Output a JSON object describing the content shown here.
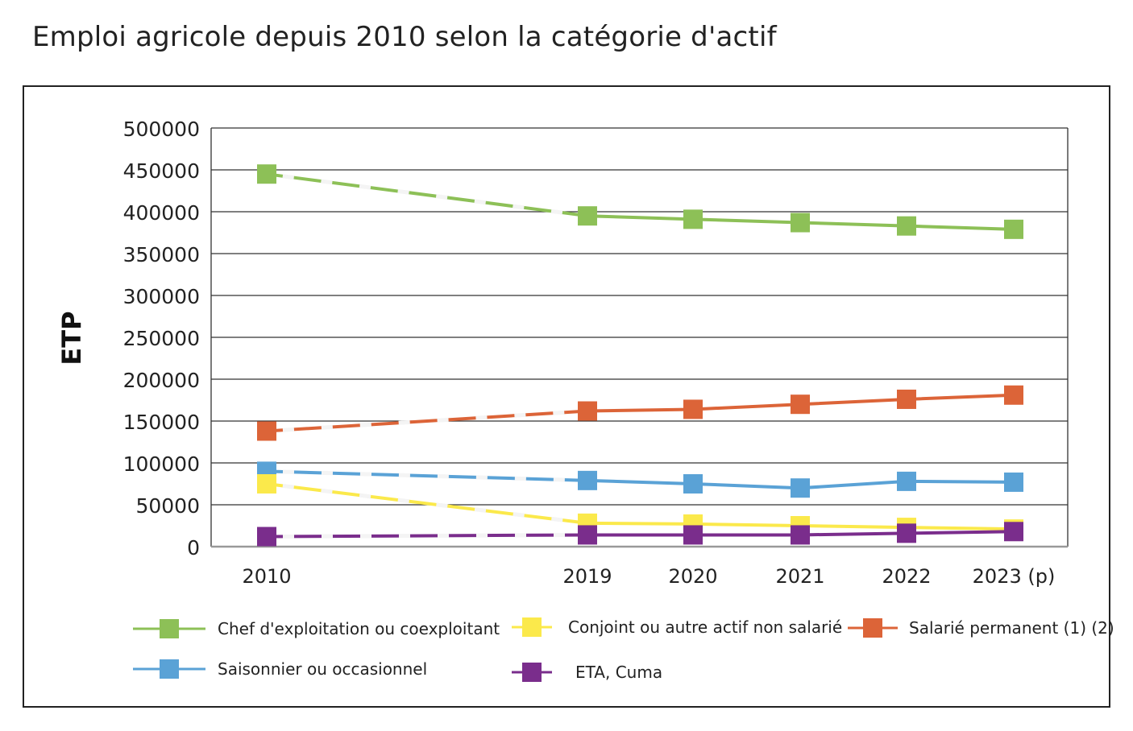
{
  "chart_data": {
    "type": "line",
    "title": "Emploi agricole depuis 2010 selon la catégorie d'actif",
    "ylabel": "ETP",
    "xlabel": "",
    "categories": [
      "2010",
      "2019",
      "2020",
      "2021",
      "2022",
      "2023 (p)"
    ],
    "x": [
      2010,
      2019,
      2020,
      2021,
      2022,
      2023
    ],
    "ylim": [
      0,
      500000
    ],
    "yticks": [
      "500000",
      "450000",
      "400000",
      "350000",
      "300000",
      "250000",
      "200000",
      "150000",
      "100000",
      "50000",
      "0"
    ],
    "grid": true,
    "legend_position": "bottom",
    "series": [
      {
        "name": "Chef d'exploitation ou coexploitant",
        "color": "#8dc057",
        "values": [
          445000,
          395000,
          391000,
          387000,
          383000,
          379000
        ]
      },
      {
        "name": "Conjoint ou autre actif non salarié",
        "color": "#fbe94b",
        "values": [
          75000,
          28000,
          27000,
          25000,
          23000,
          21000
        ]
      },
      {
        "name": "Salarié permanent (1) (2)",
        "color": "#dc6438",
        "values": [
          138000,
          162000,
          164000,
          170000,
          176000,
          181000
        ]
      },
      {
        "name": "Saisonnier ou occasionnel",
        "color": "#5aa2d6",
        "values": [
          90000,
          79000,
          75000,
          70000,
          78000,
          77000
        ]
      },
      {
        "name": "ETA, Cuma",
        "color": "#7a2d8c",
        "values": [
          12000,
          14000,
          14000,
          14000,
          16000,
          18000
        ]
      }
    ]
  }
}
